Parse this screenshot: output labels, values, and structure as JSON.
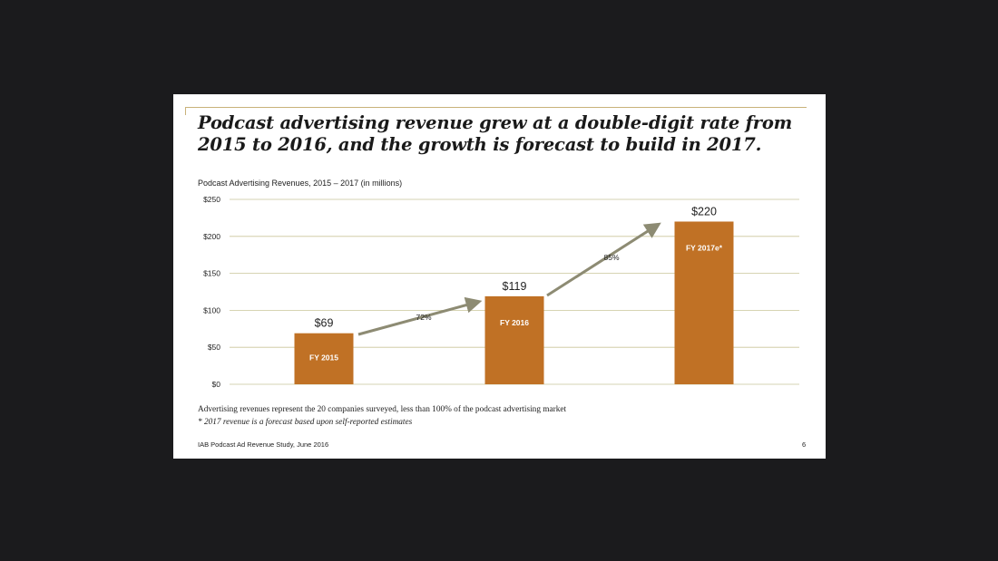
{
  "slide": {
    "title": "Podcast advertising revenue grew at a double-digit rate from 2015 to 2016, and the growth is forecast to build in 2017.",
    "note": "Advertising revenues represent the 20 companies surveyed, less than 100% of the podcast advertising market",
    "forecast_note": "* 2017 revenue is a forecast based upon self-reported estimates",
    "source": "IAB Podcast Ad Revenue Study, June 2016",
    "page_number": "6"
  },
  "colors": {
    "bar": "#c07125",
    "arrow": "#8d8b73",
    "gridline": "#c9c59a",
    "title_rule": "#c9b27a"
  },
  "chart_data": {
    "type": "bar",
    "title": "Podcast Advertising Revenues, 2015 – 2017 (in millions)",
    "categories": [
      "FY 2015",
      "FY 2016",
      "FY 2017e*"
    ],
    "values": [
      69,
      119,
      220
    ],
    "value_labels": [
      "$69",
      "$119",
      "$220"
    ],
    "y_ticks": [
      0,
      50,
      100,
      150,
      200,
      250
    ],
    "y_tick_labels": [
      "$0",
      "$50",
      "$100",
      "$150",
      "$200",
      "$250"
    ],
    "ylim": [
      0,
      250
    ],
    "grid": true,
    "growth_arrows": [
      {
        "from": "FY 2015",
        "to": "FY 2016",
        "label": "72%"
      },
      {
        "from": "FY 2016",
        "to": "FY 2017e*",
        "label": "85%"
      }
    ]
  }
}
